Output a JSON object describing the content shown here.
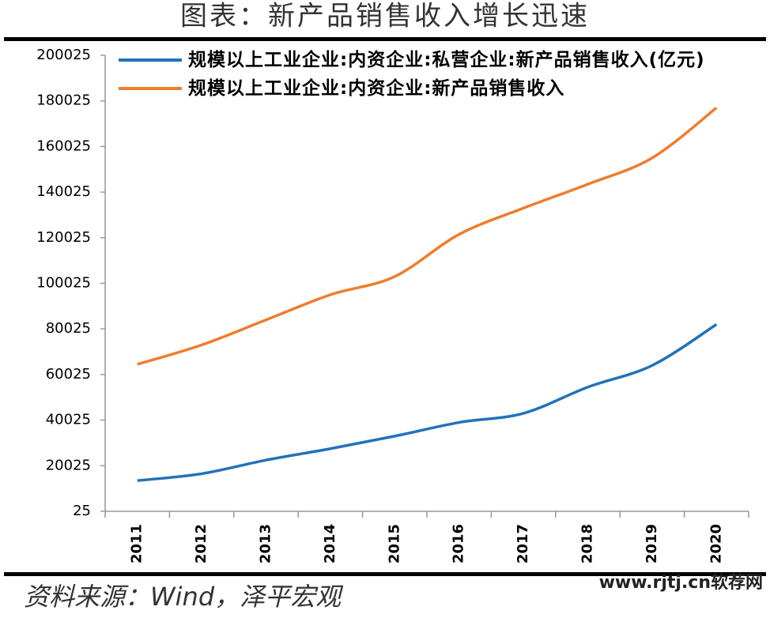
{
  "chart_data": {
    "type": "line",
    "title": "图表：新产品销售收入增长迅速",
    "categories": [
      "2011",
      "2012",
      "2013",
      "2014",
      "2015",
      "2016",
      "2017",
      "2018",
      "2019",
      "2020"
    ],
    "series": [
      {
        "name": "规模以上工业企业:内资企业:私营企业:新产品销售收入(亿元)",
        "color": "#2272b8",
        "values": [
          13500,
          16500,
          22500,
          27500,
          33000,
          39000,
          43000,
          54500,
          64000,
          82000
        ]
      },
      {
        "name": "规模以上工业企业:内资企业:新产品销售收入",
        "color": "#ee7d2c",
        "values": [
          64500,
          73000,
          84000,
          95000,
          103000,
          121500,
          133000,
          143500,
          155000,
          177000
        ]
      }
    ],
    "ylim": [
      25,
      200025
    ],
    "yticks": [
      25,
      20025,
      40025,
      60025,
      80025,
      100025,
      120025,
      140025,
      160025,
      180025,
      200025
    ],
    "source": "资料来源：Wind，泽平宏观",
    "watermark": "www.rjtj.cn软荐网"
  }
}
